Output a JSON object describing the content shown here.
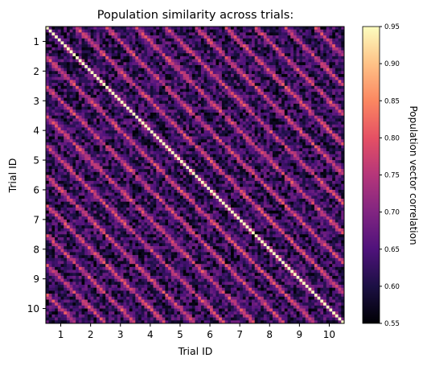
{
  "chart_data": {
    "type": "heatmap",
    "title": "Population similarity across trials:",
    "xlabel": "Trial ID",
    "ylabel": "Trial ID",
    "colorbar_label": "Population vector correlation",
    "colormap": "magma",
    "vmin": 0.55,
    "vmax": 0.95,
    "colorbar_ticks": [
      "0.55",
      "0.60",
      "0.65",
      "0.70",
      "0.75",
      "0.80",
      "0.85",
      "0.90",
      "0.95"
    ],
    "x_tick_labels": [
      "1",
      "2",
      "3",
      "4",
      "5",
      "6",
      "7",
      "8",
      "9",
      "10"
    ],
    "y_tick_labels": [
      "1",
      "2",
      "3",
      "4",
      "5",
      "6",
      "7",
      "8",
      "9",
      "10"
    ],
    "trials": 10,
    "positions_per_trial": 10,
    "description_values": {
      "diagonal": 0.95,
      "same_position_other_trials": 0.82,
      "background": 0.62
    }
  }
}
